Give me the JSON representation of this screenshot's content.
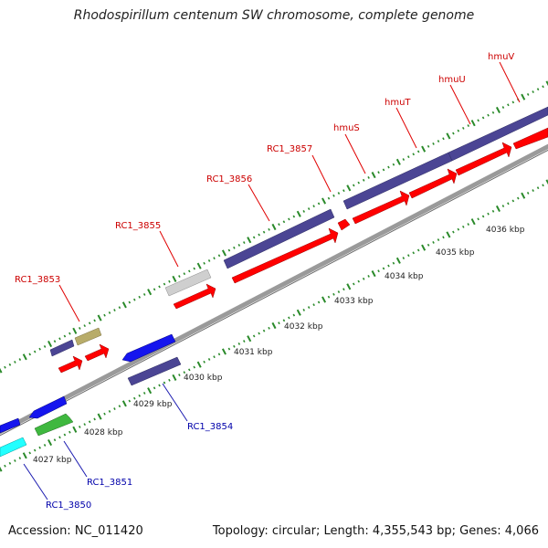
{
  "title": "Rhodospirillum centenum SW chromosome, complete genome",
  "footer": {
    "accession": "Accession: NC_011420",
    "summary": "Topology: circular; Length: 4,355,543 bp; Genes: 4,066"
  },
  "colors": {
    "backbone": "#9a9a9a",
    "tick": "#2a8a2a",
    "label_top": "#cc0000",
    "label_bottom": "#0000aa",
    "gene_red": "#ff0000",
    "gene_navy": "#4b4594",
    "gene_blue": "#1515ee",
    "gene_khaki": "#b8ac6a",
    "gene_grey": "#cfcfcf",
    "gene_green": "#3fb83f",
    "gene_cyan": "#22ffff"
  },
  "scale_labels": [
    "4027 kbp",
    "4028 kbp",
    "4029 kbp",
    "4030 kbp",
    "4031 kbp",
    "4032 kbp",
    "4033 kbp",
    "4034 kbp",
    "4035 kbp",
    "4036 kbp"
  ],
  "gene_labels_top": [
    "RC1_3853",
    "RC1_3855",
    "RC1_3856",
    "RC1_3857",
    "hmuS",
    "hmuT",
    "hmuU",
    "hmuV"
  ],
  "gene_labels_bottom": [
    "RC1_3850",
    "RC1_3851",
    "RC1_3854"
  ]
}
